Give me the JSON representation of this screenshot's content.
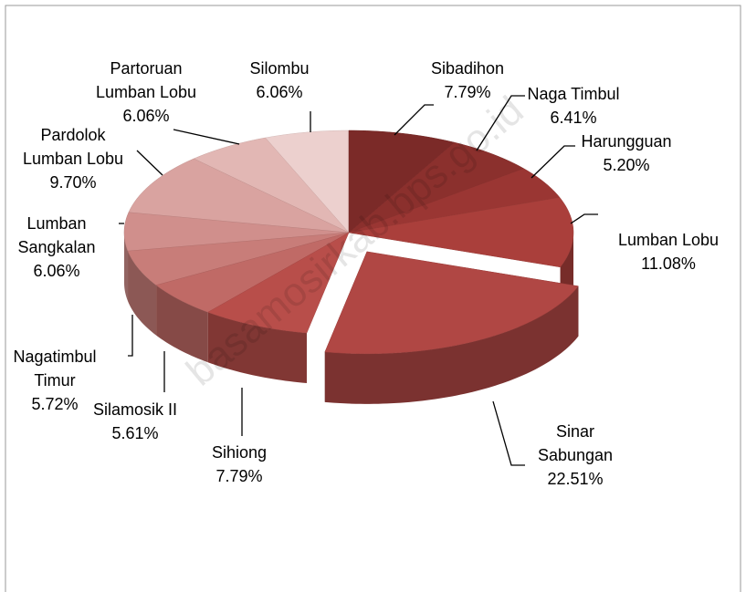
{
  "chart_data": {
    "type": "pie3d",
    "categories": [
      "Sibadihon",
      "Naga Timbul",
      "Harungguan",
      "Lumban Lobu",
      "Sinar Sabungan",
      "Sihiong",
      "Silamosik II",
      "Nagatimbul Timur",
      "Lumban Sangkalan",
      "Pardolok Lumban Lobu",
      "Partoruan Lumban Lobu",
      "Silombu"
    ],
    "values": [
      7.79,
      6.41,
      5.2,
      11.08,
      22.51,
      7.79,
      5.61,
      5.72,
      6.06,
      9.7,
      6.06,
      6.06
    ],
    "value_labels": [
      "7.79%",
      "6.41%",
      "5.20%",
      "11.08%",
      "22.51%",
      "7.79%",
      "5.61%",
      "5.72%",
      "6.06%",
      "9.70%",
      "6.06%",
      "6.06%"
    ],
    "colors": [
      "#7b2a28",
      "#8b302d",
      "#9a3633",
      "#aa3f3b",
      "#b04744",
      "#b84e4a",
      "#c06a66",
      "#c87d79",
      "#d08f8c",
      "#d9a3a0",
      "#e2b7b4",
      "#ecd0ce"
    ],
    "exploded": "Sinar Sabungan",
    "watermark": "basamosirkab.bps.go.id"
  }
}
